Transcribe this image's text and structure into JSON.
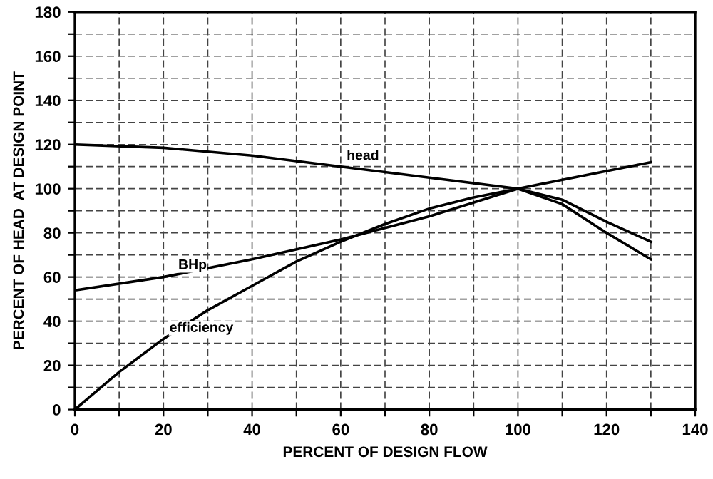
{
  "chart_data": {
    "type": "line",
    "xlabel": "PERCENT OF DESIGN FLOW",
    "ylabel": "PERCENT OF HEAD  AT DESIGN POINT",
    "series": [
      {
        "color": "#000000",
        "x": [
          0,
          20,
          40,
          60,
          80,
          100,
          110,
          120,
          130
        ],
        "values": [
          120,
          118.5,
          115,
          110,
          105,
          100,
          95,
          85,
          76
        ]
      },
      {
        "color": "#000000",
        "x": [
          0,
          10,
          20,
          30,
          40,
          50,
          60,
          70,
          80,
          90,
          100,
          110,
          120,
          130
        ],
        "values": [
          0,
          17,
          32,
          45,
          56,
          67,
          76,
          84,
          91,
          96,
          100,
          93,
          80,
          68
        ]
      },
      {
        "color": "#000000",
        "x": [
          0,
          20,
          40,
          60,
          80,
          100,
          120,
          130
        ],
        "values": [
          54,
          60,
          68,
          77,
          87.5,
          100,
          108,
          112
        ]
      }
    ],
    "annotations": [
      {
        "text": "head",
        "x": 60,
        "y": 110
      },
      {
        "text": "BHp",
        "x": 22,
        "y": 60.5
      },
      {
        "text": "efficiency",
        "x": 20,
        "y": 32
      }
    ],
    "xlim": [
      0,
      140
    ],
    "ylim": [
      0,
      180
    ],
    "xticks": [
      0,
      {
        "value": 10,
        "label": null
      },
      20,
      {
        "value": 30,
        "label": null
      },
      40,
      {
        "value": 50,
        "label": null
      },
      60,
      {
        "value": 70,
        "label": null
      },
      80,
      {
        "value": 90,
        "label": null
      },
      100,
      {
        "value": 110,
        "label": null
      },
      120,
      {
        "value": 130,
        "label": null
      },
      140
    ],
    "yticks": [
      0,
      {
        "value": 10,
        "label": null
      },
      20,
      {
        "value": 30,
        "label": null
      },
      40,
      {
        "value": 50,
        "label": null
      },
      60,
      {
        "value": 70,
        "label": null
      },
      80,
      {
        "value": 90,
        "label": null
      },
      100,
      {
        "value": 110,
        "label": null
      },
      120,
      {
        "value": 130,
        "label": null
      },
      140,
      {
        "value": 150,
        "label": null
      },
      160,
      {
        "value": 170,
        "label": null
      },
      180
    ],
    "grid": true,
    "legend": false,
    "marker": "none",
    "line_style": "solid"
  }
}
